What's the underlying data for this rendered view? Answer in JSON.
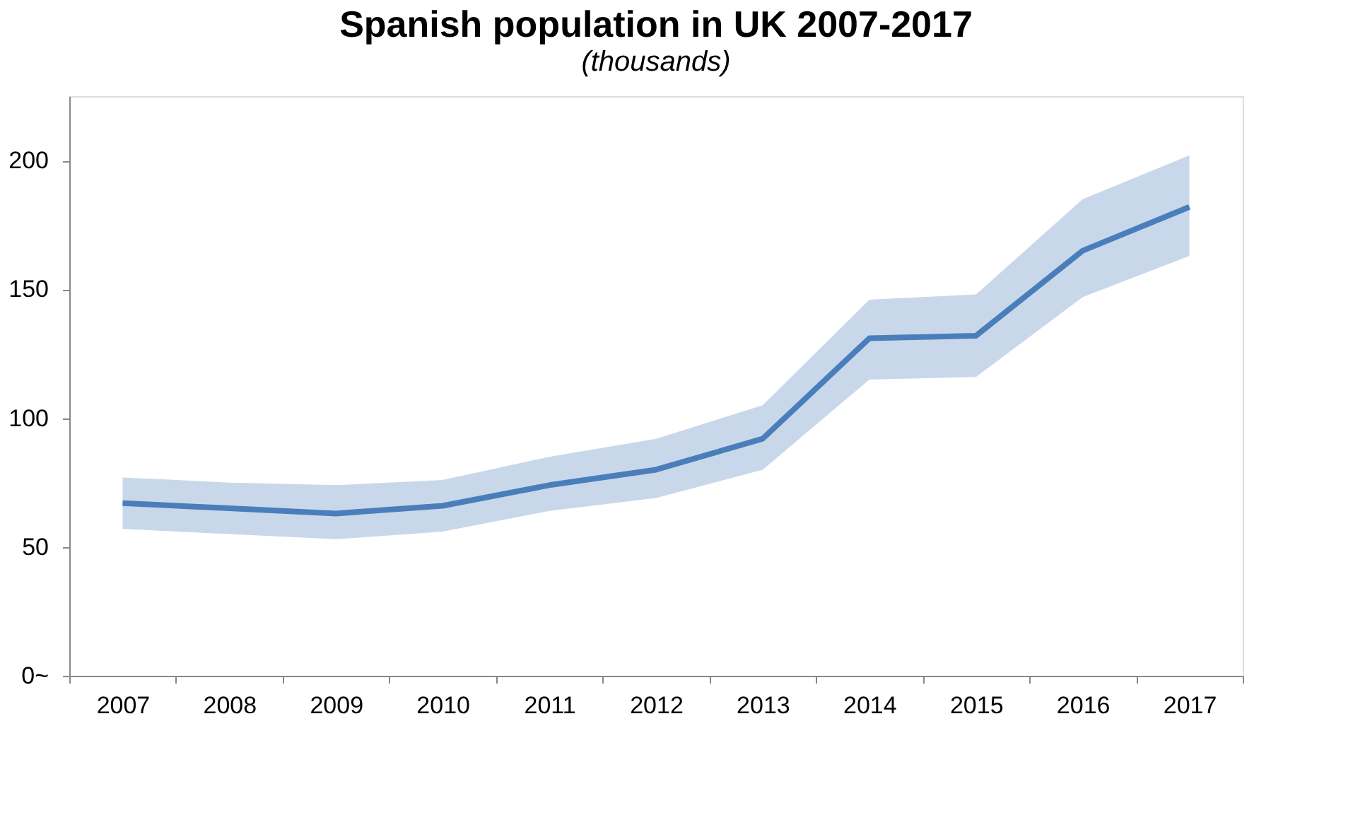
{
  "chart_data": {
    "type": "line",
    "title": "Spanish population in UK 2007-2017",
    "subtitle": "(thousands)",
    "categories": [
      "2007",
      "2008",
      "2009",
      "2010",
      "2011",
      "2012",
      "2013",
      "2014",
      "2015",
      "2016",
      "2017"
    ],
    "series": [
      {
        "color": "#4a7ebb",
        "values": [
          67,
          65,
          63,
          66,
          74,
          80,
          92,
          131,
          132,
          165,
          182
        ],
        "lower": [
          57,
          55,
          53,
          56,
          64,
          69,
          80,
          115,
          116,
          147,
          163
        ],
        "upper": [
          77,
          75,
          74,
          76,
          85,
          92,
          105,
          146,
          148,
          185,
          202
        ]
      }
    ],
    "ylim": [
      0,
      225
    ],
    "yticks": [
      {
        "value": 0,
        "label": "0~"
      },
      50,
      100,
      150,
      200
    ],
    "grid": false,
    "marker": "none",
    "line_style": "solid"
  }
}
